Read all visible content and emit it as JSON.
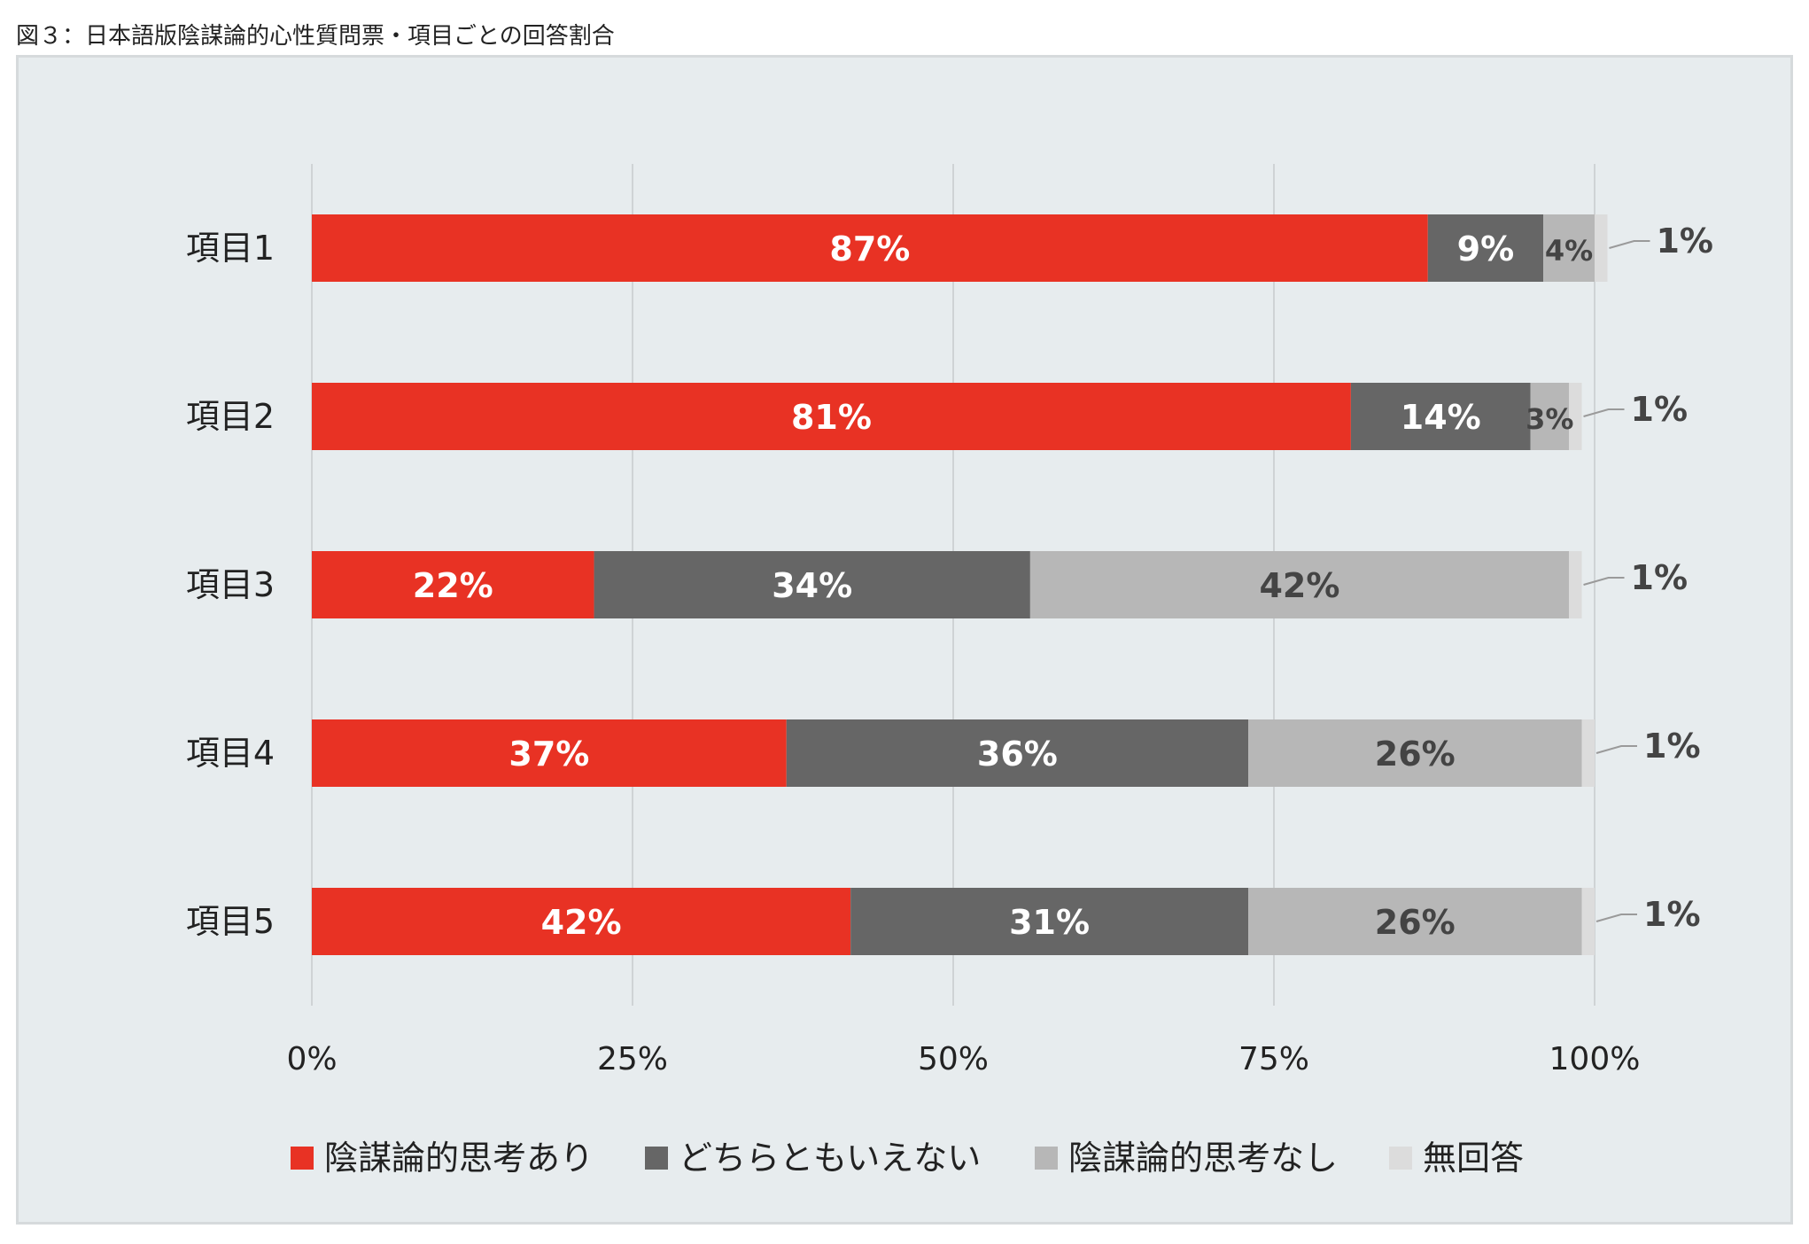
{
  "caption": "図３：日本語版陰謀論的心性質問票・項目ごとの回答割合",
  "chart_data": {
    "type": "bar",
    "orientation": "horizontal",
    "stacked": true,
    "categories": [
      "項目1",
      "項目2",
      "項目3",
      "項目4",
      "項目5"
    ],
    "series": [
      {
        "name": "陰謀論的思考あり",
        "color": "#e83224",
        "values": [
          87,
          81,
          22,
          37,
          42
        ],
        "labels": [
          "87%",
          "81%",
          "22%",
          "37%",
          "42%"
        ]
      },
      {
        "name": "どちらともいえない",
        "color": "#666666",
        "values": [
          9,
          14,
          34,
          36,
          31
        ],
        "labels": [
          "9%",
          "14%",
          "34%",
          "36%",
          "31%"
        ]
      },
      {
        "name": "陰謀論的思考なし",
        "color": "#b7b7b7",
        "values": [
          4,
          3,
          42,
          26,
          26
        ],
        "labels": [
          "4%",
          "3%",
          "42%",
          "26%",
          "26%"
        ]
      },
      {
        "name": "無回答",
        "color": "#dcdcdc",
        "values": [
          1,
          1,
          1,
          1,
          1
        ],
        "labels": [
          "1%",
          "1%",
          "1%",
          "1%",
          "1%"
        ]
      }
    ],
    "xlim": [
      0,
      100
    ],
    "x_ticks": [
      "0%",
      "25%",
      "50%",
      "75%",
      "100%"
    ],
    "grid": true,
    "legend_position": "bottom"
  }
}
